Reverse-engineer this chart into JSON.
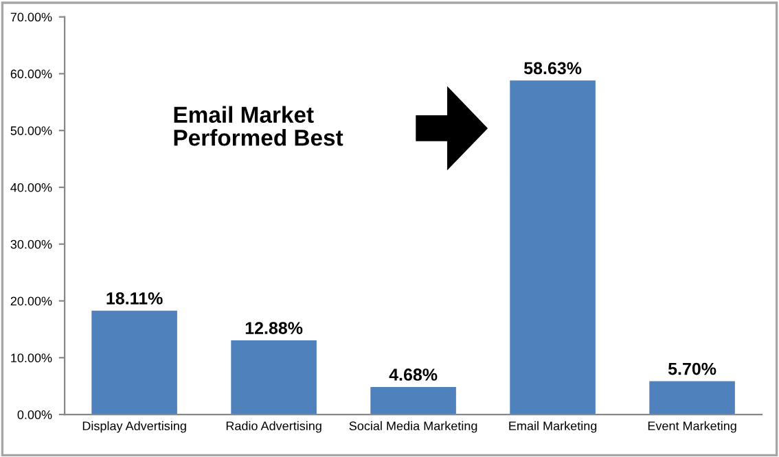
{
  "chart_data": {
    "type": "bar",
    "categories": [
      "Display Advertising",
      "Radio Advertising",
      "Social Media Marketing",
      "Email Marketing",
      "Event Marketing"
    ],
    "values": [
      18.11,
      12.88,
      4.68,
      58.63,
      5.7
    ],
    "value_labels": [
      "18.11%",
      "12.88%",
      "4.68%",
      "58.63%",
      "5.70%"
    ],
    "color": "#4f81bd",
    "ylim": [
      0,
      70
    ],
    "yticks": [
      {
        "value": 0,
        "label": "0.00%"
      },
      {
        "value": 10,
        "label": "10.00%"
      },
      {
        "value": 20,
        "label": "20.00%"
      },
      {
        "value": 30,
        "label": "30.00%"
      },
      {
        "value": 40,
        "label": "40.00%"
      },
      {
        "value": 50,
        "label": "50.00%"
      },
      {
        "value": 60,
        "label": "60.00%"
      },
      {
        "value": 70,
        "label": "70.00%"
      }
    ],
    "annotations": [
      "Email Market\nPerformed Best"
    ],
    "grid": false,
    "legend": false
  }
}
